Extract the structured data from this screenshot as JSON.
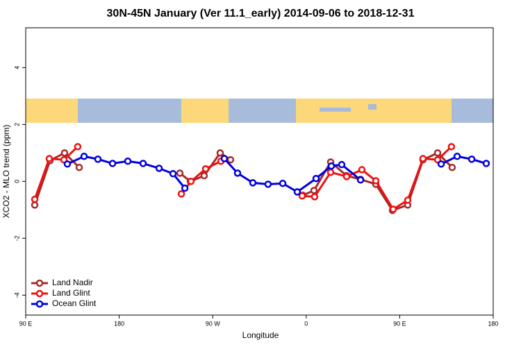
{
  "chart_data": {
    "type": "line",
    "title": "30N-45N January (Ver 11.1_early)   2014-09-06 to 2018-12-31",
    "x_label": "Longitude",
    "y_label": "XCO2 - MLO trend (ppm)",
    "xlim": [
      90,
      540
    ],
    "xticks": [
      {
        "value": 90,
        "label": "90 E"
      },
      180,
      {
        "value": 270,
        "label": "90 W"
      },
      {
        "value": 360,
        "label": "0"
      },
      {
        "value": 450,
        "label": "90 E"
      },
      {
        "value": 540,
        "label": "180"
      }
    ],
    "ylim": [
      -4.7,
      5.4
    ],
    "yticks": [
      -4,
      -2,
      0,
      2,
      4
    ],
    "legend": "bottom-left",
    "series": [
      {
        "name": "Land Nadir",
        "color": "#a52a2a",
        "x": [
          98.7,
          113.4,
          127.4,
          141.5,
          null,
          238.4,
          248.5,
          261.8,
          277.2,
          287.2,
          null,
          356.8,
          367.5,
          383.5,
          398.9,
          412.3,
          427.0,
          443.0,
          457.7,
          472.4,
          486.5,
          500.5
        ],
        "values": [
          -0.83,
          0.73,
          1.0,
          0.49,
          null,
          0.29,
          0,
          0.2,
          1.0,
          0.76,
          null,
          -0.49,
          -0.32,
          0.68,
          0.2,
          0.07,
          -0.1,
          -1.02,
          -0.83,
          0.76,
          1.0,
          0.49
        ]
      },
      {
        "name": "Land Glint",
        "color": "#ee1111",
        "x": [
          98.7,
          112.7,
          126.8,
          140.1,
          null,
          239.8,
          249.1,
          263.2,
          277.9,
          null,
          356.1,
          368.1,
          383.5,
          398.9,
          413.6,
          427.0,
          443.7,
          457.7,
          472.4,
          486.5,
          499.8
        ],
        "values": [
          -0.63,
          0.8,
          0.76,
          1.22,
          null,
          -0.44,
          0,
          0.44,
          0.71,
          null,
          -0.51,
          -0.54,
          0.32,
          0.17,
          0.41,
          0.02,
          -0.98,
          -0.66,
          0.8,
          0.76,
          1.22
        ]
      },
      {
        "name": "Ocean Glint",
        "color": "#0000dd",
        "x": [
          130.1,
          146.2,
          159.5,
          173.6,
          188.3,
          203.0,
          218.4,
          231.8,
          243.2,
          null,
          281.2,
          293.9,
          308.6,
          323.3,
          337.4,
          351.4,
          369.5,
          384.2,
          394.2,
          412.3,
          null,
          489.9,
          505.3,
          519.3,
          533.3
        ],
        "values": [
          0.61,
          0.88,
          0.78,
          0.63,
          0.71,
          0.63,
          0.46,
          0.27,
          -0.24,
          null,
          0.8,
          0.29,
          -0.05,
          -0.1,
          -0.07,
          -0.37,
          0.1,
          0.54,
          0.59,
          0.05,
          null,
          0.61,
          0.88,
          0.78,
          0.63
        ]
      }
    ]
  }
}
